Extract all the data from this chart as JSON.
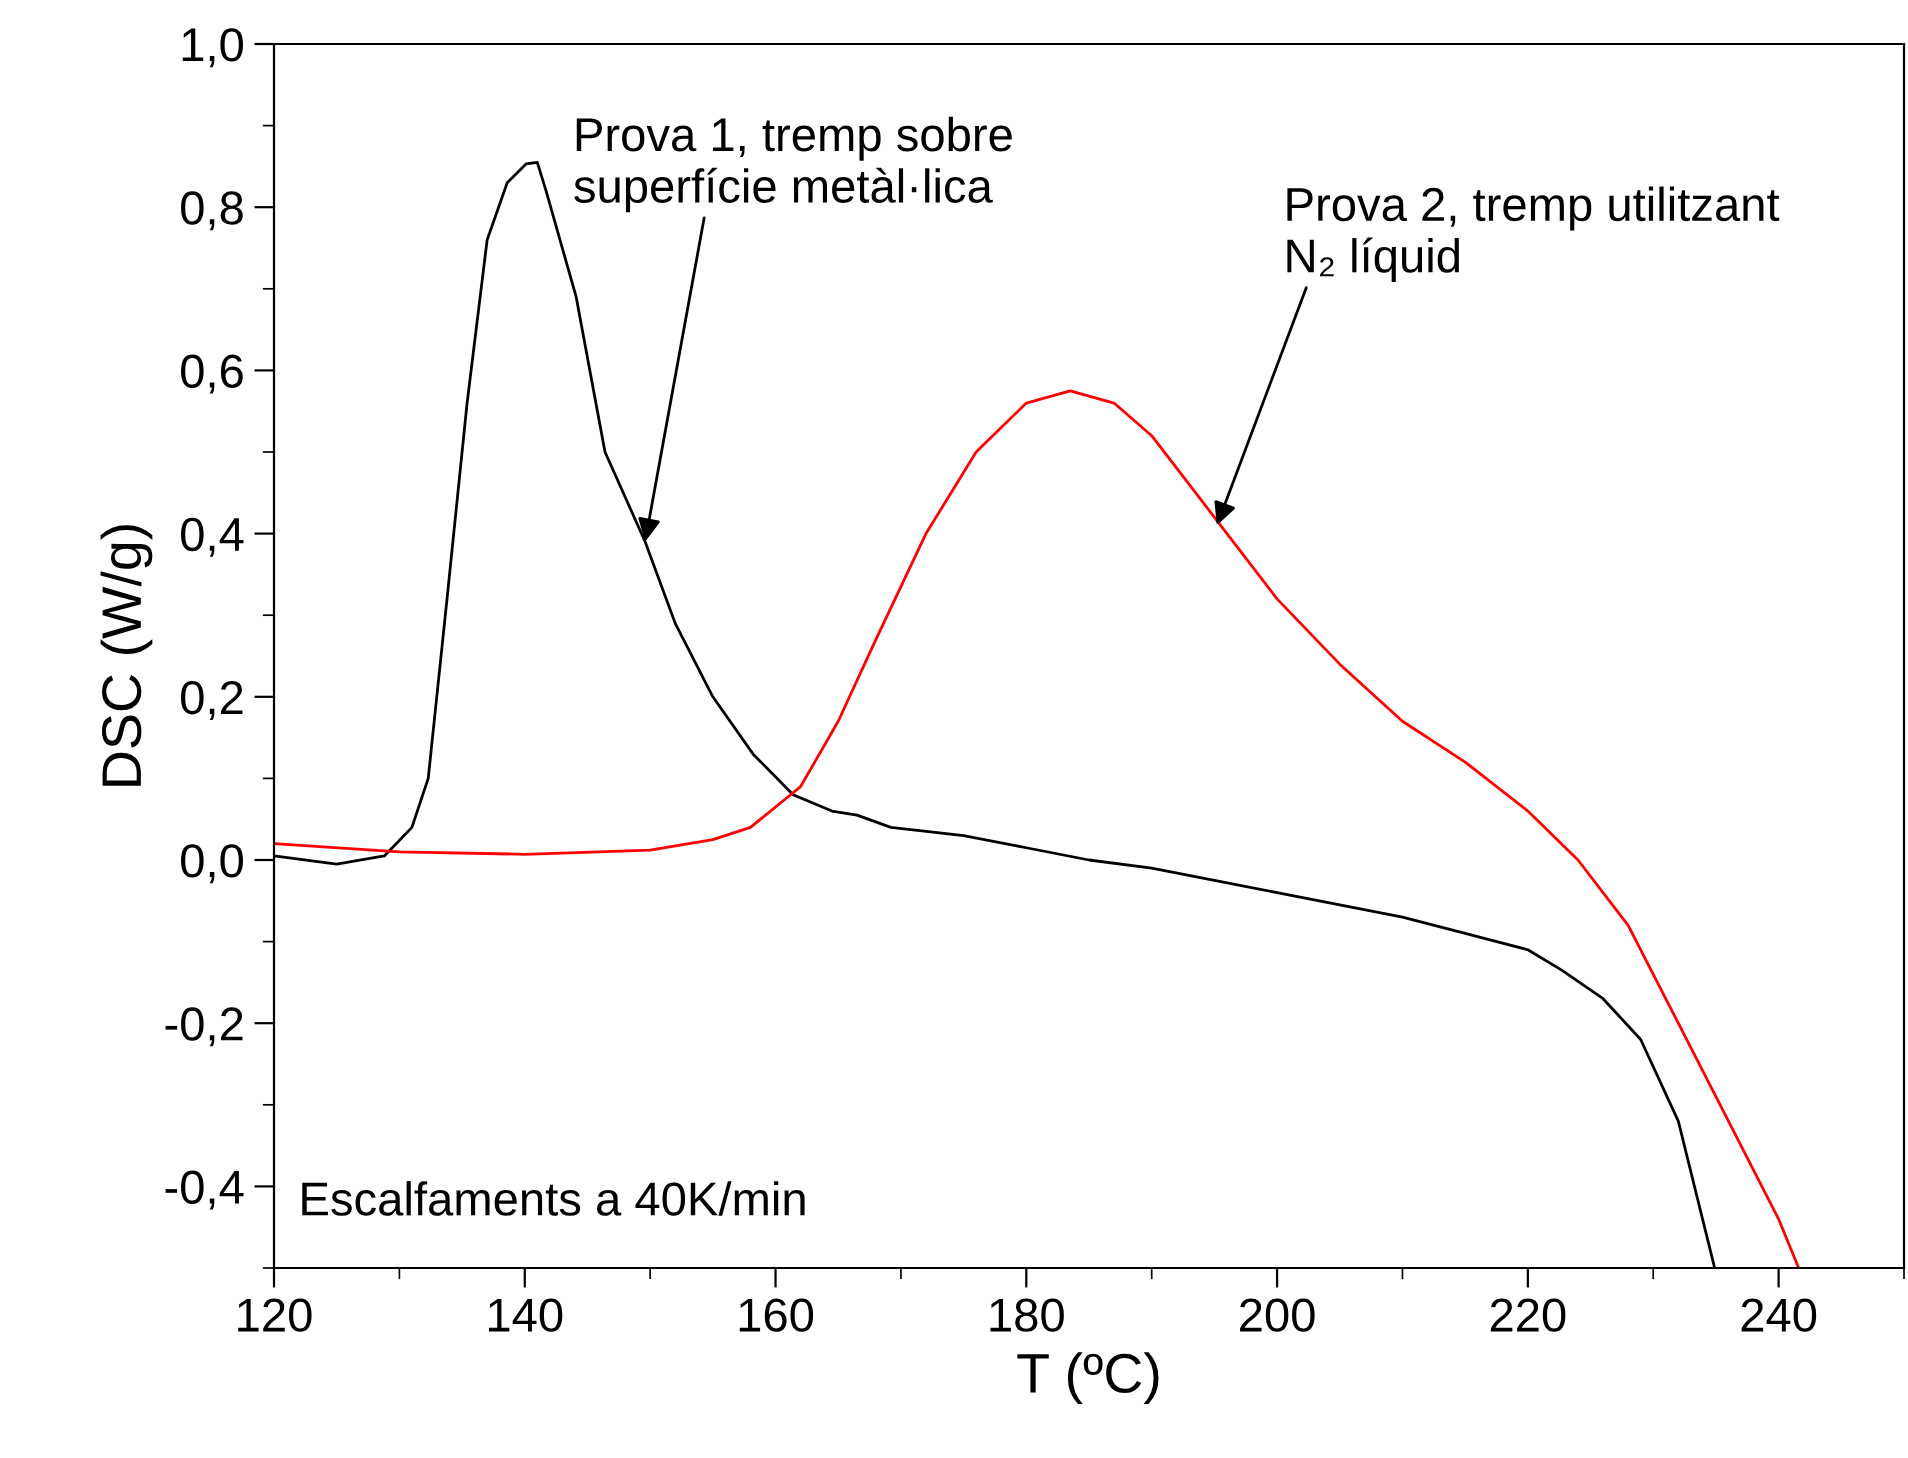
{
  "chart_data": {
    "type": "line",
    "xlabel": "T (ºC)",
    "ylabel": "DSC (W/g)",
    "xlim": [
      120,
      250
    ],
    "ylim": [
      -0.5,
      1.0
    ],
    "xticks": [
      120,
      140,
      160,
      180,
      200,
      220,
      240
    ],
    "yticks": [
      {
        "value": -0.4,
        "label": "-0,4"
      },
      {
        "value": -0.2,
        "label": "-0,2"
      },
      {
        "value": 0.0,
        "label": "0,0"
      },
      {
        "value": 0.2,
        "label": "0,2"
      },
      {
        "value": 0.4,
        "label": "0,4"
      },
      {
        "value": 0.6,
        "label": "0,6"
      },
      {
        "value": 0.8,
        "label": "0,8"
      },
      {
        "value": 1.0,
        "label": "1,0"
      }
    ],
    "grid": false,
    "legend": false,
    "marker": "none",
    "line_style": "solid",
    "series": [
      {
        "color": "#000000",
        "x": [
          120,
          125,
          128.8,
          131,
          132.3,
          133.8,
          135.4,
          137,
          138.6,
          140.1,
          141,
          141.7,
          144.1,
          146.4,
          149.6,
          152,
          155,
          158.2,
          161.4,
          164.5,
          166.5,
          169.2,
          175,
          180,
          185,
          190,
          195,
          200,
          205,
          210,
          215,
          220,
          222.7,
          226,
          229,
          232,
          234.9
        ],
        "values": [
          0.005,
          -0.005,
          0.005,
          0.04,
          0.1,
          0.32,
          0.56,
          0.76,
          0.83,
          0.853,
          0.855,
          0.82,
          0.69,
          0.5,
          0.39,
          0.29,
          0.2,
          0.13,
          0.08,
          0.06,
          0.055,
          0.04,
          0.03,
          0.015,
          0.0,
          -0.01,
          -0.025,
          -0.04,
          -0.055,
          -0.07,
          -0.09,
          -0.11,
          -0.135,
          -0.17,
          -0.22,
          -0.32,
          -0.5
        ]
      },
      {
        "color": "#ff0000",
        "x": [
          120,
          130,
          140,
          150,
          155,
          158,
          162,
          165,
          168,
          172,
          176,
          180,
          183.5,
          187,
          190,
          194,
          197,
          200,
          205,
          210,
          215,
          220,
          224,
          228,
          232,
          236,
          240,
          241.6
        ],
        "values": [
          0.02,
          0.01,
          0.007,
          0.012,
          0.025,
          0.04,
          0.09,
          0.17,
          0.27,
          0.4,
          0.5,
          0.56,
          0.575,
          0.56,
          0.52,
          0.44,
          0.38,
          0.32,
          0.24,
          0.17,
          0.12,
          0.06,
          0.0,
          -0.08,
          -0.2,
          -0.32,
          -0.44,
          -0.5
        ]
      }
    ],
    "annotations": [
      {
        "text": "Prova 1, tremp sobre\nsuperfície metàl·lica",
        "x": 149.6,
        "y": 0.39
      },
      {
        "text": "Prova 2, tremp utilitzant\nN₂ líquid",
        "x": 195.2,
        "y": 0.41
      },
      "Escalfaments a 40K/min"
    ]
  }
}
